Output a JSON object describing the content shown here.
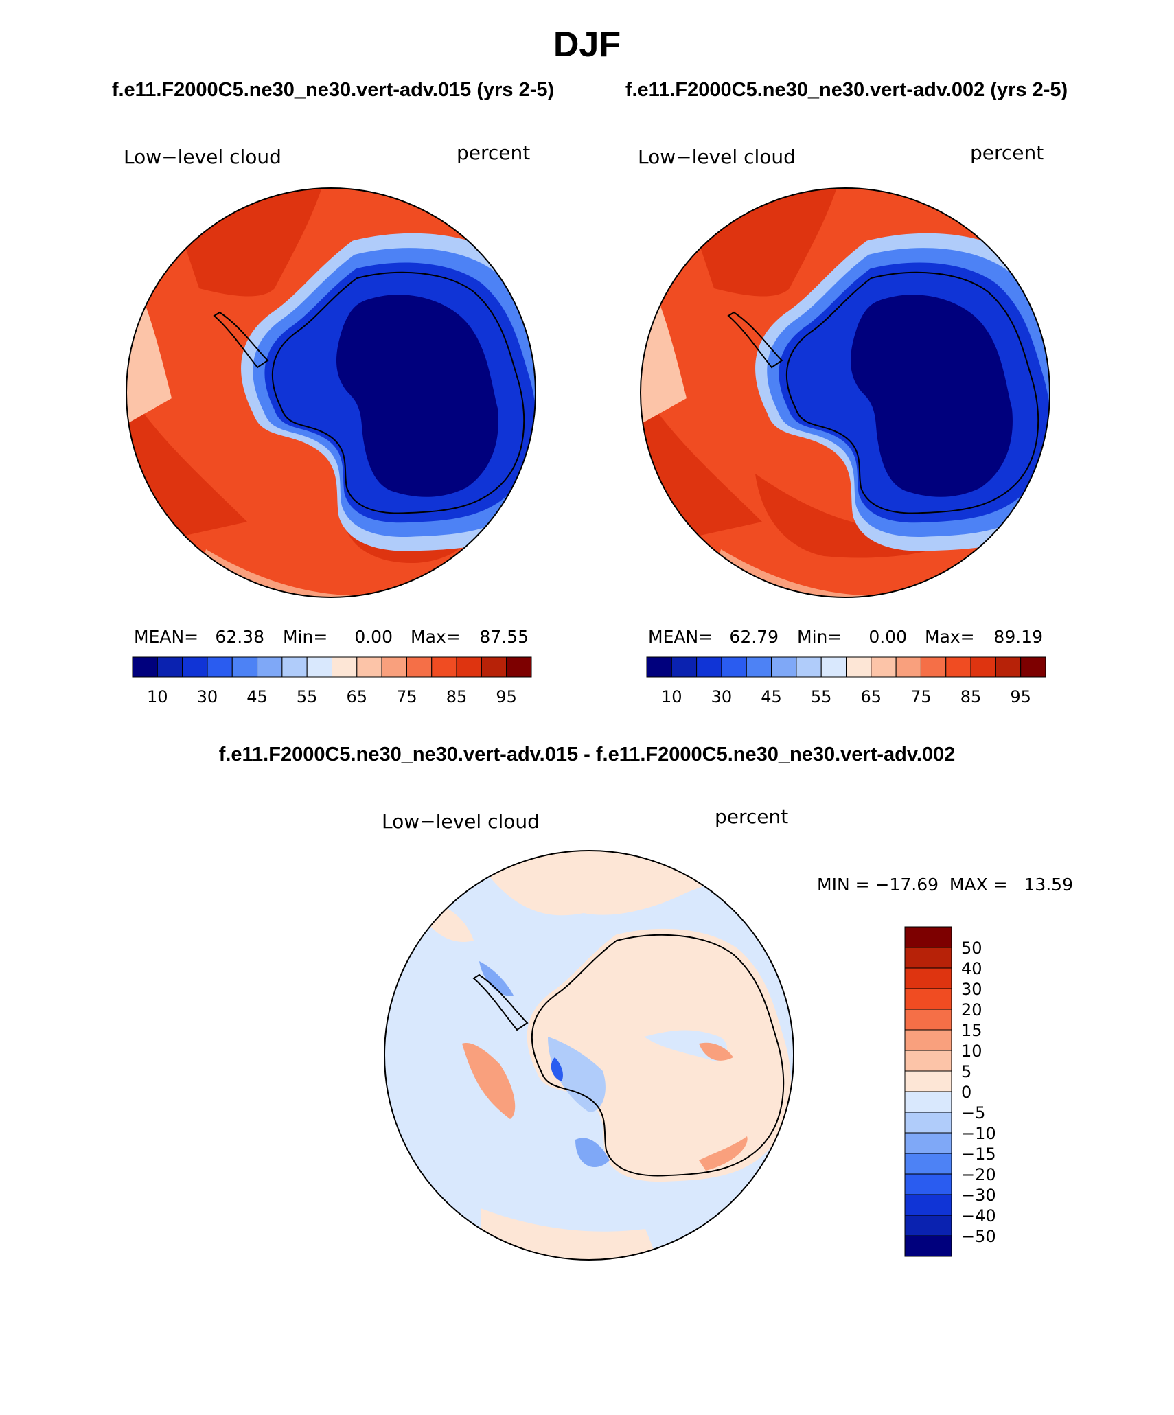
{
  "main_title": "DJF",
  "panel_left": {
    "case_title": "f.e11.F2000C5.ne30_ne30.vert-adv.015 (yrs 2-5)",
    "variable": "Low−level cloud",
    "units": "percent",
    "mean_label": "MEAN=",
    "mean": "62.38",
    "min_label": "Min=",
    "min": "0.00",
    "max_label": "Max=",
    "max": "87.55"
  },
  "panel_right": {
    "case_title": "f.e11.F2000C5.ne30_ne30.vert-adv.002 (yrs 2-5)",
    "variable": "Low−level cloud",
    "units": "percent",
    "mean_label": "MEAN=",
    "mean": "62.79",
    "min_label": "Min=",
    "min": "0.00",
    "max_label": "Max=",
    "max": "89.19"
  },
  "panel_diff": {
    "case_title": "f.e11.F2000C5.ne30_ne30.vert-adv.015 - f.e11.F2000C5.ne30_ne30.vert-adv.002",
    "variable": "Low−level cloud",
    "units": "percent",
    "minmax_text": "MIN = −17.69  MAX =   13.59"
  },
  "colorbar_abs": {
    "tick_labels": [
      "10",
      "30",
      "45",
      "55",
      "65",
      "75",
      "85",
      "95"
    ],
    "colors": [
      "#00007d",
      "#0a22b0",
      "#1034d6",
      "#2a5cf0",
      "#4d82f5",
      "#7fa8f7",
      "#b0ccfa",
      "#d9e8fd",
      "#fde6d6",
      "#fcc4a8",
      "#f9a07d",
      "#f56f47",
      "#f04c22",
      "#de3410",
      "#b72208",
      "#7d0000"
    ]
  },
  "colorbar_diff": {
    "tick_labels": [
      "50",
      "40",
      "30",
      "20",
      "15",
      "10",
      "5",
      "0",
      "−5",
      "−10",
      "−15",
      "−20",
      "−30",
      "−40",
      "−50"
    ],
    "colors": [
      "#7d0000",
      "#b72208",
      "#de3410",
      "#f04c22",
      "#f56f47",
      "#f9a07d",
      "#fcc4a8",
      "#fde6d6",
      "#d9e8fd",
      "#b0ccfa",
      "#7fa8f7",
      "#4d82f5",
      "#2a5cf0",
      "#1034d6",
      "#0a22b0",
      "#00007d"
    ]
  }
}
